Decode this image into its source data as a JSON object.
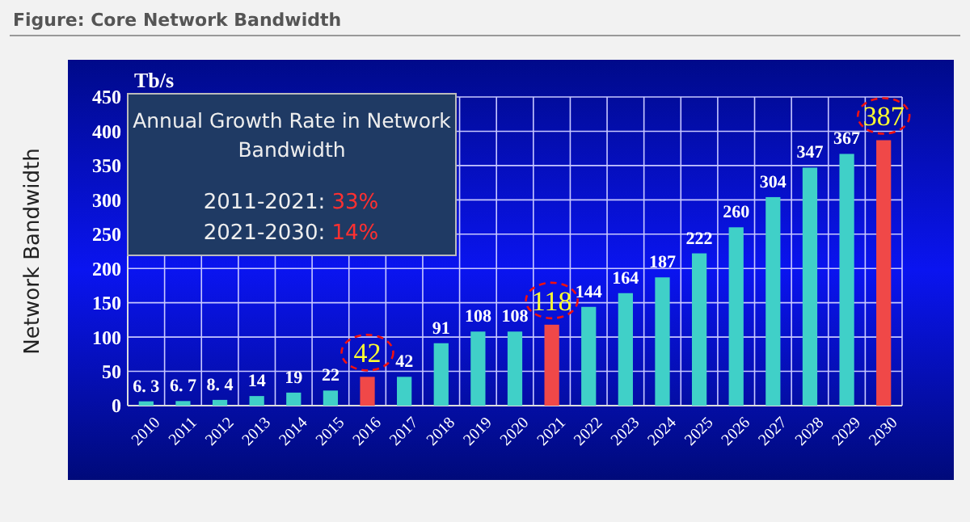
{
  "chart_data": {
    "type": "bar",
    "title": "Figure: Core Network Bandwidth",
    "ylabel": "Network Bandwidth",
    "annotations": [
      "Tb/s",
      "Annual Growth Rate in Network Bandwidth",
      "2011-2021: 33%",
      "2021-2030: 14%"
    ],
    "categories": [
      "2010",
      "2011",
      "2012",
      "2013",
      "2014",
      "2015",
      "2016",
      "2017",
      "2018",
      "2019",
      "2020",
      "2021",
      "2022",
      "2023",
      "2024",
      "2025",
      "2026",
      "2027",
      "2028",
      "2029",
      "2030"
    ],
    "values": [
      6.3,
      6.7,
      8.4,
      14,
      19,
      22,
      42,
      42,
      91,
      108,
      108,
      118,
      144,
      164,
      187,
      222,
      260,
      304,
      347,
      367,
      387
    ],
    "value_labels": [
      "6. 3",
      "6. 7",
      "8. 4",
      "14",
      "19",
      "22",
      "42",
      "42",
      "91",
      "108",
      "108",
      "118",
      "144",
      "164",
      "187",
      "222",
      "260",
      "304",
      "347",
      "367",
      "387"
    ],
    "colors": [
      "#40d0c8",
      "#40d0c8",
      "#40d0c8",
      "#40d0c8",
      "#40d0c8",
      "#40d0c8",
      "#f04848",
      "#40d0c8",
      "#40d0c8",
      "#40d0c8",
      "#40d0c8",
      "#f04848",
      "#40d0c8",
      "#40d0c8",
      "#40d0c8",
      "#40d0c8",
      "#40d0c8",
      "#40d0c8",
      "#40d0c8",
      "#40d0c8",
      "#f04848"
    ],
    "ylim": [
      0,
      450
    ],
    "yticks": [
      0,
      50,
      100,
      150,
      200,
      250,
      300,
      350,
      400,
      450
    ],
    "grid": true
  }
}
